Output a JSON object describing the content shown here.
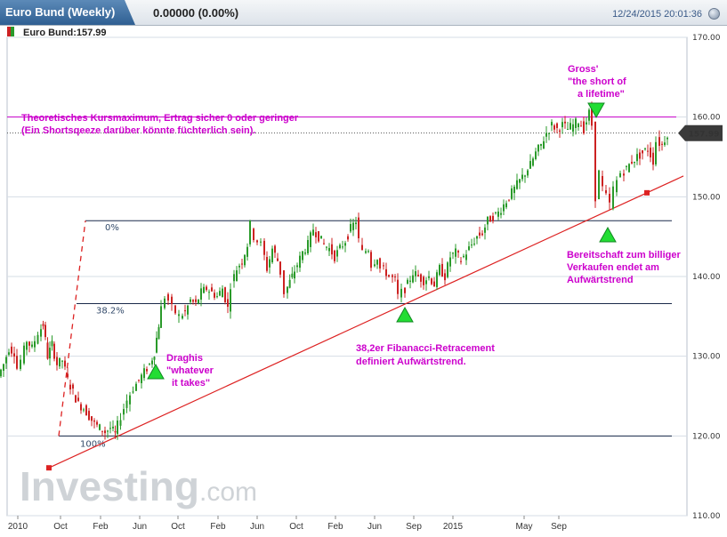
{
  "header": {
    "instrument_tab": "Euro Bund (Weekly)",
    "quote": "0.00000 (0.00%)",
    "timestamp": "12/24/2015 20:01:36"
  },
  "legend": {
    "label": "Euro Bund:157.99"
  },
  "branding": {
    "logo_main": "Investing",
    "logo_suffix": ".com"
  },
  "chart_data": {
    "type": "candlestick",
    "ylim": [
      110,
      170
    ],
    "yticks": [
      170,
      160,
      150,
      140,
      130,
      120,
      110
    ],
    "ytick_labels": [
      "170.00",
      "160.00",
      "150.00",
      "140.00",
      "130.00",
      "120.00",
      "110.00"
    ],
    "xtick_labels": [
      "2010",
      "Oct",
      "Feb",
      "Jun",
      "Oct",
      "Feb",
      "Jun",
      "Oct",
      "Feb",
      "Jun",
      "Sep",
      "2015",
      "May",
      "Sep"
    ],
    "last_price": 157.99,
    "last_price_label": "157.99",
    "series_close_approx": [
      [
        0,
        127.5
      ],
      [
        6,
        129
      ],
      [
        12,
        131
      ],
      [
        18,
        130.5
      ],
      [
        22,
        128.5
      ],
      [
        26,
        129.5
      ],
      [
        32,
        132
      ],
      [
        38,
        131
      ],
      [
        45,
        133
      ],
      [
        50,
        134
      ],
      [
        55,
        130
      ],
      [
        60,
        131.5
      ],
      [
        66,
        129
      ],
      [
        72,
        129.5
      ],
      [
        78,
        127
      ],
      [
        84,
        125.5
      ],
      [
        90,
        124
      ],
      [
        96,
        123.5
      ],
      [
        102,
        122.5
      ],
      [
        108,
        121.5
      ],
      [
        114,
        121
      ],
      [
        120,
        120.5
      ],
      [
        126,
        121
      ],
      [
        131,
        120.2
      ],
      [
        138,
        122.5
      ],
      [
        145,
        124.5
      ],
      [
        152,
        126
      ],
      [
        158,
        127
      ],
      [
        164,
        128
      ],
      [
        170,
        129
      ],
      [
        175,
        130.5
      ],
      [
        180,
        134
      ],
      [
        184,
        136
      ],
      [
        188,
        137.5
      ],
      [
        192,
        137
      ],
      [
        196,
        136
      ],
      [
        200,
        135.5
      ],
      [
        204,
        135
      ],
      [
        210,
        135.5
      ],
      [
        216,
        137
      ],
      [
        222,
        136.5
      ],
      [
        228,
        138
      ],
      [
        234,
        138.5
      ],
      [
        240,
        138
      ],
      [
        246,
        137.5
      ],
      [
        252,
        138.5
      ],
      [
        258,
        136
      ],
      [
        262,
        139
      ],
      [
        268,
        141
      ],
      [
        274,
        142
      ],
      [
        280,
        144
      ],
      [
        284,
        146.5
      ],
      [
        288,
        145
      ],
      [
        292,
        144.5
      ],
      [
        296,
        144
      ],
      [
        302,
        141
      ],
      [
        308,
        143.5
      ],
      [
        314,
        142
      ],
      [
        318,
        140.5
      ],
      [
        322,
        138
      ],
      [
        330,
        140
      ],
      [
        336,
        141.5
      ],
      [
        342,
        143
      ],
      [
        348,
        144
      ],
      [
        354,
        146
      ],
      [
        360,
        145
      ],
      [
        366,
        144
      ],
      [
        372,
        143.5
      ],
      [
        378,
        142.5
      ],
      [
        384,
        143.5
      ],
      [
        390,
        144.5
      ],
      [
        396,
        146
      ],
      [
        402,
        147
      ],
      [
        406,
        144.5
      ],
      [
        410,
        143
      ],
      [
        416,
        143.5
      ],
      [
        420,
        141.5
      ],
      [
        426,
        142.5
      ],
      [
        430,
        141
      ],
      [
        436,
        140.5
      ],
      [
        440,
        140
      ],
      [
        446,
        139.5
      ],
      [
        450,
        137.5
      ],
      [
        454,
        138
      ],
      [
        460,
        139
      ],
      [
        466,
        140.5
      ],
      [
        472,
        140
      ],
      [
        478,
        139.5
      ],
      [
        484,
        140
      ],
      [
        490,
        139
      ],
      [
        496,
        141
      ],
      [
        502,
        140
      ],
      [
        508,
        142.5
      ],
      [
        514,
        143
      ],
      [
        520,
        142
      ],
      [
        526,
        143
      ],
      [
        532,
        144
      ],
      [
        538,
        145
      ],
      [
        544,
        145.5
      ],
      [
        550,
        147
      ],
      [
        556,
        147.5
      ],
      [
        562,
        148
      ],
      [
        568,
        149
      ],
      [
        574,
        150
      ],
      [
        580,
        151
      ],
      [
        586,
        152
      ],
      [
        592,
        153
      ],
      [
        598,
        154
      ],
      [
        604,
        155.5
      ],
      [
        610,
        156.5
      ],
      [
        616,
        158
      ],
      [
        622,
        159
      ],
      [
        628,
        158.5
      ],
      [
        634,
        159
      ],
      [
        640,
        158.5
      ],
      [
        646,
        159
      ],
      [
        652,
        159.5
      ],
      [
        658,
        158.5
      ],
      [
        664,
        160.5
      ],
      [
        668,
        159
      ],
      [
        672,
        150
      ],
      [
        676,
        153
      ],
      [
        680,
        151
      ],
      [
        684,
        150
      ],
      [
        688,
        149
      ],
      [
        692,
        151
      ],
      [
        696,
        152
      ],
      [
        700,
        153
      ],
      [
        706,
        153.5
      ],
      [
        712,
        154.5
      ],
      [
        718,
        155
      ],
      [
        724,
        155.5
      ],
      [
        730,
        156
      ],
      [
        736,
        154.5
      ],
      [
        740,
        157
      ],
      [
        746,
        156.5
      ],
      [
        752,
        158
      ]
    ],
    "annotations": [
      {
        "lines": [
          "Theoretisches Kursmaximum, Ertrag sicher 0 oder geringer",
          "(Ein Shortsqeeze darüber könnte füchterlich sein)."
        ]
      },
      {
        "lines": [
          "Gross'",
          "\"the short of",
          "a lifetime\""
        ]
      },
      {
        "lines": [
          "Draghis",
          "\"whatever",
          "it takes\""
        ]
      },
      {
        "lines": [
          "38,2er Fibanacci-Retracement",
          "definiert Aufwärtstrend."
        ]
      },
      {
        "lines": [
          "Bereitschaft zum billiger",
          "Verkaufen endet am",
          "Aufwärtstrend"
        ]
      }
    ],
    "fibonacci_labels": [
      "0%",
      "38.2%",
      "100%"
    ],
    "fibonacci_levels": [
      147,
      136.6,
      120
    ],
    "resistance_level": 160,
    "dotted_level": 158,
    "trendline": {
      "start": [
        55,
        116
      ],
      "end": [
        727,
        150.5
      ]
    },
    "colors": {
      "up": "#2a9a2a",
      "down": "#cc2222",
      "annotation": "#cc00cc",
      "trend": "#dd2222",
      "fib": "#1a2a4a",
      "grid": "#d6dde5",
      "price_tag": "#3a3a3a"
    }
  }
}
